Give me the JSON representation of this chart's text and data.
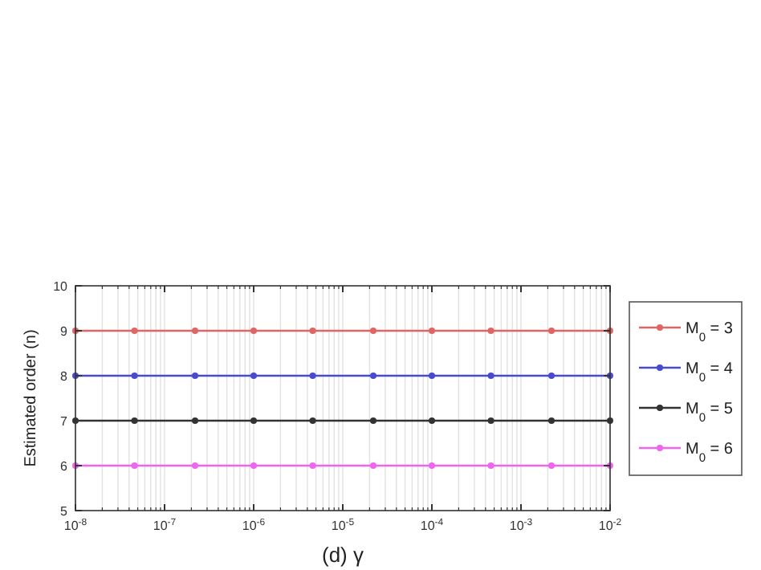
{
  "chart_data": {
    "type": "line",
    "xlabel": "(d) γ",
    "ylabel": "Estimated order (n)",
    "x": [
      1e-08,
      4.6e-08,
      2.2e-07,
      1e-06,
      4.6e-06,
      2.2e-05,
      0.0001,
      0.00046,
      0.0022,
      0.01
    ],
    "series": [
      {
        "name": "M$_{0}$ = 3",
        "color": "#e06666",
        "values": [
          9,
          9,
          9,
          9,
          9,
          9,
          9,
          9,
          9,
          9
        ]
      },
      {
        "name": "M$_{0}$ = 4",
        "color": "#4a4ad0",
        "values": [
          8,
          8,
          8,
          8,
          8,
          8,
          8,
          8,
          8,
          8
        ]
      },
      {
        "name": "M$_{0}$ = 5",
        "color": "#333333",
        "values": [
          7,
          7,
          7,
          7,
          7,
          7,
          7,
          7,
          7,
          7
        ]
      },
      {
        "name": "M$_{0}$ = 6",
        "color": "#ee66ee",
        "values": [
          6,
          6,
          6,
          6,
          6,
          6,
          6,
          6,
          6,
          6
        ]
      }
    ],
    "log": "x",
    "xlim": [
      1e-08,
      0.01
    ],
    "xticks": [
      {
        "value": 1e-08,
        "label": "10$^{-8}$"
      },
      {
        "value": 1e-07,
        "label": "10$^{-7}$"
      },
      {
        "value": 1e-06,
        "label": "10$^{-6}$"
      },
      {
        "value": 1e-05,
        "label": "10$^{-5}$"
      },
      {
        "value": 0.0001,
        "label": "10$^{-4}$"
      },
      {
        "value": 0.001,
        "label": "10$^{-3}$"
      },
      {
        "value": 0.01,
        "label": "10$^{-2}$"
      }
    ],
    "ylim": [
      5,
      10
    ],
    "yticks": [
      5,
      6,
      7,
      8,
      9,
      10
    ],
    "grid": "x",
    "legend": "right",
    "marker": "circle",
    "line_style": "solid"
  }
}
